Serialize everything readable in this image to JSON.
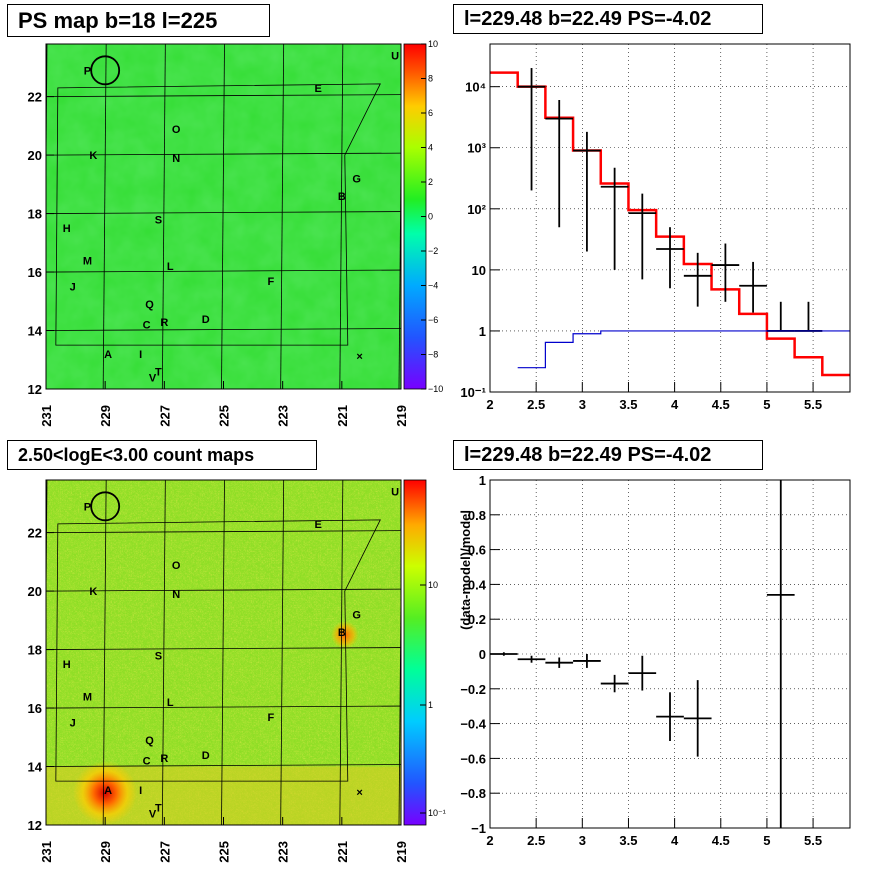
{
  "panels": {
    "top_left_title": "PS map b=18 l=225",
    "top_right_title": "l=229.48 b=22.49 PS=-4.02",
    "bottom_left_title": "2.50<logE<3.00 count maps",
    "bottom_right_title": "l=229.48 b=22.49 PS=-4.02"
  },
  "colors": {
    "map_green": "#33dd33",
    "data_black": "#000000",
    "model_red": "#ff0000",
    "ratio_blue": "#0000cc",
    "grid": "#000000"
  },
  "sources": [
    "P",
    "E",
    "U",
    "O",
    "K",
    "N",
    "G",
    "B",
    "S",
    "H",
    "M",
    "L",
    "J",
    "F",
    "Q",
    "C",
    "R",
    "D",
    "A",
    "I",
    "T",
    "V"
  ],
  "chart_data": [
    {
      "type": "heatmap",
      "title": "PS map b=18 l=225",
      "xlabel": "",
      "ylabel": "",
      "x_ticks": [
        "231",
        "229",
        "227",
        "225",
        "223",
        "221",
        "219"
      ],
      "y_ticks": [
        "12",
        "14",
        "16",
        "18",
        "20",
        "22"
      ],
      "xlim": [
        231,
        219
      ],
      "ylim": [
        12,
        23.8
      ],
      "colorbar_ticks": [
        "10",
        "8",
        "6",
        "4",
        "2",
        "0",
        "−2",
        "−4",
        "−6",
        "−8",
        "−10"
      ],
      "colorbar_range": [
        -10,
        10
      ]
    },
    {
      "type": "line",
      "title": "l=229.48 b=22.49 PS=-4.02",
      "xlabel": "",
      "ylabel": "",
      "log_y": true,
      "xlim": [
        2,
        5.9
      ],
      "ylim": [
        0.1,
        50000
      ],
      "x_ticks": [
        "2",
        "2.5",
        "3",
        "3.5",
        "4",
        "4.5",
        "5",
        "5.5"
      ],
      "y_ticks": [
        "10⁻¹",
        "1",
        "10",
        "10²",
        "10³",
        "10⁴"
      ],
      "series": [
        {
          "kind": "model_step",
          "edges": [
            2.0,
            2.3,
            2.6,
            2.9,
            3.2,
            3.5,
            3.8,
            4.1,
            4.4,
            4.7,
            5.0,
            5.3,
            5.6,
            5.9
          ],
          "values": [
            17000,
            10000,
            3100,
            900,
            260,
            95,
            35,
            12.5,
            4.8,
            1.9,
            0.75,
            0.37,
            0.19
          ]
        },
        {
          "kind": "data_points",
          "x": [
            2.45,
            2.75,
            3.05,
            3.35,
            3.65,
            3.95,
            4.25,
            4.55,
            4.85,
            5.15,
            5.45
          ],
          "y": [
            10000,
            3000,
            900,
            230,
            85,
            22,
            8,
            12,
            5.5,
            1.0,
            1.0
          ],
          "yerr_lo": [
            9800,
            2950,
            880,
            220,
            78,
            17,
            5.5,
            9,
            3.5,
            0.01,
            0.01
          ],
          "yerr_hi": [
            10200,
            3050,
            920,
            240,
            92,
            28,
            11,
            15,
            8,
            2,
            2
          ]
        },
        {
          "kind": "ratio_step",
          "edges": [
            2.3,
            2.6,
            2.9,
            3.2,
            5.9
          ],
          "values": [
            0.25,
            0.65,
            0.9,
            1.0
          ]
        }
      ]
    },
    {
      "type": "heatmap",
      "title": "2.50<logE<3.00 count maps",
      "xlabel": "",
      "ylabel": "",
      "x_ticks": [
        "231",
        "229",
        "227",
        "225",
        "223",
        "221",
        "219"
      ],
      "y_ticks": [
        "12",
        "14",
        "16",
        "18",
        "20",
        "22"
      ],
      "xlim": [
        231,
        219
      ],
      "ylim": [
        12,
        23.8
      ],
      "colorbar_ticks": [
        "10",
        "1",
        "10⁻¹"
      ],
      "log_color": true
    },
    {
      "type": "scatter",
      "title": "l=229.48 b=22.49 PS=-4.02",
      "xlabel": "",
      "ylabel": "(data-model)/model",
      "xlim": [
        2,
        5.9
      ],
      "ylim": [
        -1,
        1
      ],
      "x_ticks": [
        "2",
        "2.5",
        "3",
        "3.5",
        "4",
        "4.5",
        "5",
        "5.5"
      ],
      "y_ticks": [
        "−1",
        "−0.8",
        "−0.6",
        "−0.4",
        "−0.2",
        "0",
        "0.2",
        "0.4",
        "0.6",
        "0.8",
        "1"
      ],
      "points": {
        "x": [
          2.15,
          2.45,
          2.75,
          3.05,
          3.35,
          3.65,
          3.95,
          4.25,
          5.15
        ],
        "y": [
          0.0,
          -0.03,
          -0.05,
          -0.04,
          -0.17,
          -0.11,
          -0.36,
          -0.37,
          0.34
        ],
        "xerr": [
          0.15,
          0.15,
          0.15,
          0.15,
          0.15,
          0.15,
          0.15,
          0.15,
          0.15
        ],
        "yerr": [
          0.01,
          0.02,
          0.03,
          0.04,
          0.05,
          0.1,
          0.14,
          0.22,
          1.5
        ]
      }
    }
  ]
}
